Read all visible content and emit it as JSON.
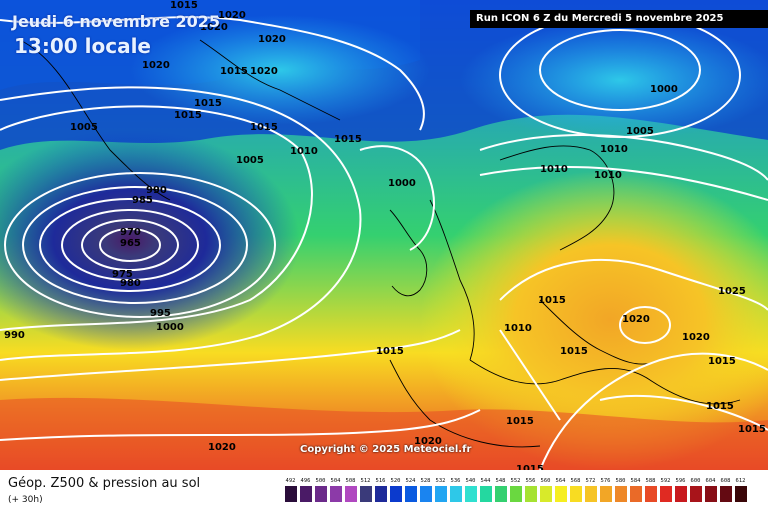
{
  "header": {
    "date_title": "Jeudi 6 novembre 2025",
    "time_title": "13:00 locale",
    "run_info": "Run ICON 6 Z du Mercredi 5 novembre 2025"
  },
  "map": {
    "copyright": "Copyright © 2025 Meteociel.fr",
    "low_center": {
      "label_inner": "965",
      "label_outer": "970"
    },
    "pressure_labels": [
      "1015",
      "1020",
      "1020",
      "1020",
      "1020",
      "1020",
      "1015",
      "1015",
      "1015",
      "1015",
      "1015",
      "1010",
      "1005",
      "1005",
      "1005",
      "1000",
      "990",
      "985",
      "970",
      "965",
      "975",
      "980",
      "995",
      "1000",
      "990",
      "1000",
      "1000",
      "1005",
      "1010",
      "1010",
      "1010",
      "1015",
      "1015",
      "1010",
      "1015",
      "1020",
      "1025",
      "1020",
      "1015",
      "1015",
      "1015",
      "1015",
      "1015",
      "1020",
      "1020",
      "1015"
    ],
    "land_color": "#ffffff"
  },
  "footer": {
    "parameter_title": "Géop. Z500 & pression au sol",
    "lead_time": "(+ 30h)"
  },
  "legend": {
    "ticks": [
      "492",
      "496",
      "500",
      "504",
      "508",
      "512",
      "516",
      "520",
      "524",
      "528",
      "532",
      "536",
      "540",
      "544",
      "548",
      "552",
      "556",
      "560",
      "564",
      "568",
      "572",
      "576",
      "580",
      "584",
      "588",
      "592",
      "596",
      "600",
      "604",
      "608",
      "612"
    ],
    "colors": [
      "#2a0d3a",
      "#4a1a66",
      "#6b2a8a",
      "#8c3aa8",
      "#b048c0",
      "#3a3a7a",
      "#1e2a9a",
      "#0b3acd",
      "#0a5ae0",
      "#1a84f0",
      "#22a6f2",
      "#2ec8e8",
      "#30e0d0",
      "#24d8a0",
      "#34d070",
      "#6ad840",
      "#a6e232",
      "#d8ea2a",
      "#f6ee20",
      "#f8dc22",
      "#f6c426",
      "#f2a626",
      "#ee8828",
      "#ea6a28",
      "#e84a26",
      "#e02a22",
      "#c81a1e",
      "#a8141a",
      "#880e16",
      "#640a12",
      "#3a0608"
    ]
  }
}
